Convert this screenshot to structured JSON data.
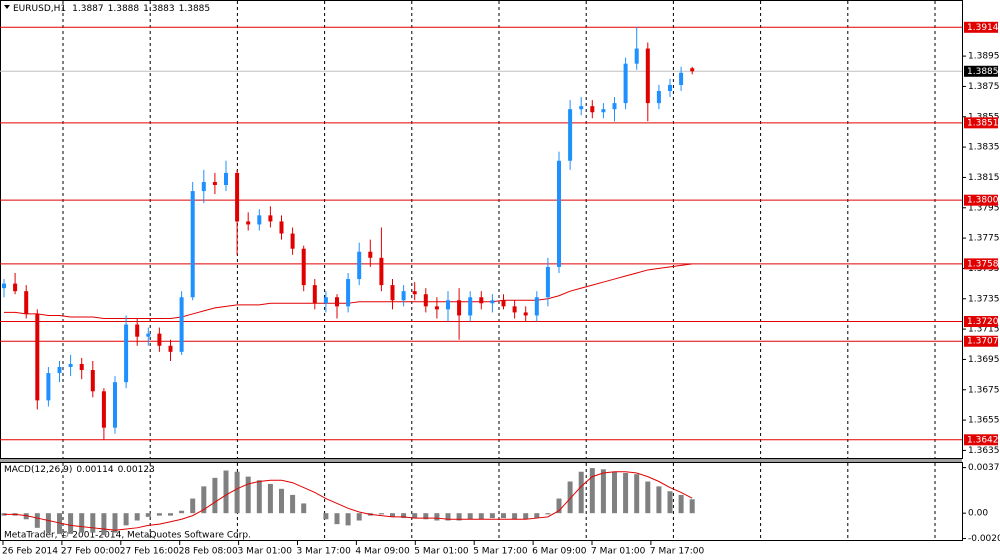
{
  "header": {
    "symbol": "EURUSD,H1",
    "ohlc": [
      1.3887,
      1.3888,
      1.3883,
      1.3885
    ]
  },
  "chart_data": {
    "type": "candlestick",
    "ylim": [
      1.363,
      1.3932
    ],
    "yticks": [
      1.3635,
      1.3655,
      1.3675,
      1.3695,
      1.3715,
      1.3735,
      1.3755,
      1.3775,
      1.3795,
      1.3815,
      1.3835,
      1.3855,
      1.3875,
      1.3895
    ],
    "bull_color": "#1e90ff",
    "bear_color": "#e00000",
    "candles": [
      [
        1.3742,
        1.3748,
        1.3736,
        1.3745
      ],
      [
        1.3745,
        1.3752,
        1.3738,
        1.374
      ],
      [
        1.374,
        1.3744,
        1.3722,
        1.3725
      ],
      [
        1.3725,
        1.3728,
        1.3662,
        1.3668
      ],
      [
        1.3668,
        1.369,
        1.3664,
        1.3686
      ],
      [
        1.3686,
        1.3694,
        1.368,
        1.369
      ],
      [
        1.369,
        1.3698,
        1.3684,
        1.3692
      ],
      [
        1.3692,
        1.3696,
        1.3682,
        1.3688
      ],
      [
        1.3688,
        1.3694,
        1.367,
        1.3674
      ],
      [
        1.3674,
        1.3676,
        1.3642,
        1.365
      ],
      [
        1.365,
        1.3684,
        1.3646,
        1.368
      ],
      [
        1.368,
        1.3724,
        1.3676,
        1.3718
      ],
      [
        1.3718,
        1.3722,
        1.3704,
        1.371
      ],
      [
        1.371,
        1.3716,
        1.3704,
        1.3712
      ],
      [
        1.3712,
        1.3716,
        1.37,
        1.3704
      ],
      [
        1.3704,
        1.3708,
        1.3694,
        1.37
      ],
      [
        1.37,
        1.374,
        1.3698,
        1.3736
      ],
      [
        1.3736,
        1.3812,
        1.3734,
        1.3806
      ],
      [
        1.3806,
        1.382,
        1.3798,
        1.3812
      ],
      [
        1.3812,
        1.3818,
        1.3804,
        1.381
      ],
      [
        1.381,
        1.3826,
        1.3806,
        1.3818
      ],
      [
        1.3818,
        1.382,
        1.3764,
        1.3786
      ],
      [
        1.3786,
        1.3792,
        1.378,
        1.3784
      ],
      [
        1.3784,
        1.3794,
        1.378,
        1.379
      ],
      [
        1.379,
        1.3796,
        1.3782,
        1.3786
      ],
      [
        1.3786,
        1.379,
        1.3774,
        1.3778
      ],
      [
        1.3778,
        1.3782,
        1.3764,
        1.3768
      ],
      [
        1.3768,
        1.377,
        1.374,
        1.3744
      ],
      [
        1.3744,
        1.3748,
        1.3728,
        1.3732
      ],
      [
        1.3732,
        1.374,
        1.3726,
        1.3736
      ],
      [
        1.3736,
        1.3738,
        1.3722,
        1.373
      ],
      [
        1.373,
        1.3752,
        1.3726,
        1.3748
      ],
      [
        1.3748,
        1.3772,
        1.3744,
        1.3766
      ],
      [
        1.3766,
        1.3774,
        1.3756,
        1.3762
      ],
      [
        1.3762,
        1.3782,
        1.374,
        1.3744
      ],
      [
        1.3744,
        1.3748,
        1.3728,
        1.3734
      ],
      [
        1.3734,
        1.3744,
        1.373,
        1.374
      ],
      [
        1.374,
        1.3746,
        1.3734,
        1.3738
      ],
      [
        1.3738,
        1.3742,
        1.3726,
        1.373
      ],
      [
        1.373,
        1.3736,
        1.3722,
        1.3728
      ],
      [
        1.3728,
        1.374,
        1.372,
        1.3734
      ],
      [
        1.3734,
        1.3742,
        1.3708,
        1.3724
      ],
      [
        1.3724,
        1.374,
        1.372,
        1.3736
      ],
      [
        1.3736,
        1.374,
        1.3728,
        1.3732
      ],
      [
        1.3732,
        1.3738,
        1.3726,
        1.3734
      ],
      [
        1.3734,
        1.3738,
        1.3728,
        1.373
      ],
      [
        1.373,
        1.3734,
        1.3722,
        1.3726
      ],
      [
        1.3726,
        1.373,
        1.372,
        1.3724
      ],
      [
        1.3724,
        1.374,
        1.372,
        1.3736
      ],
      [
        1.3736,
        1.3762,
        1.373,
        1.3756
      ],
      [
        1.3756,
        1.3832,
        1.3752,
        1.3826
      ],
      [
        1.3826,
        1.3866,
        1.382,
        1.386
      ],
      [
        1.386,
        1.3868,
        1.3856,
        1.3862
      ],
      [
        1.3862,
        1.3866,
        1.3854,
        1.3858
      ],
      [
        1.3858,
        1.3864,
        1.3854,
        1.386
      ],
      [
        1.386,
        1.3868,
        1.3852,
        1.3864
      ],
      [
        1.3864,
        1.3894,
        1.386,
        1.389
      ],
      [
        1.389,
        1.3914,
        1.3886,
        1.39
      ],
      [
        1.39,
        1.3904,
        1.3852,
        1.3864
      ],
      [
        1.3864,
        1.3876,
        1.386,
        1.3872
      ],
      [
        1.3872,
        1.388,
        1.3868,
        1.3876
      ],
      [
        1.3876,
        1.3888,
        1.3872,
        1.3884
      ],
      [
        1.3887,
        1.3888,
        1.3883,
        1.3885
      ]
    ],
    "ma": {
      "color": "#e00000",
      "values": [
        1.3726,
        1.3726,
        1.3725,
        1.3725,
        1.3724,
        1.3724,
        1.3723,
        1.3723,
        1.3723,
        1.3722,
        1.3722,
        1.3722,
        1.3722,
        1.3722,
        1.3722,
        1.3722,
        1.3723,
        1.3725,
        1.3727,
        1.3729,
        1.373,
        1.3731,
        1.3731,
        1.3731,
        1.3732,
        1.3732,
        1.3732,
        1.3732,
        1.3732,
        1.3732,
        1.3732,
        1.3732,
        1.3733,
        1.3733,
        1.3733,
        1.3733,
        1.3733,
        1.3733,
        1.3733,
        1.3733,
        1.3733,
        1.3733,
        1.3733,
        1.3733,
        1.3733,
        1.3734,
        1.3734,
        1.3734,
        1.3734,
        1.3735,
        1.3737,
        1.374,
        1.3742,
        1.3744,
        1.3746,
        1.3748,
        1.375,
        1.3752,
        1.3754,
        1.3755,
        1.3756,
        1.3757,
        1.3758
      ]
    },
    "levels": {
      "color": "#e00000",
      "values": [
        {
          "value": 1.3914,
          "label": "1.3914"
        },
        {
          "value": 1.3851,
          "label": "1.3851"
        },
        {
          "value": 1.38,
          "label": "1.3800"
        },
        {
          "value": 1.3758,
          "label": "1.3758"
        },
        {
          "value": 1.372,
          "label": "1.3720"
        },
        {
          "value": 1.3707,
          "label": "1.3707"
        },
        {
          "value": 1.3642,
          "label": "1.3642"
        }
      ]
    },
    "current_price": 1.3885,
    "time_labels": [
      "26 Feb 2014",
      "27 Feb 00:00",
      "27 Feb 16:00",
      "28 Feb 08:00",
      "3 Mar 01:00",
      "3 Mar 17:00",
      "4 Mar 09:00",
      "5 Mar 01:00",
      "5 Mar 17:00",
      "6 Mar 09:00",
      "7 Mar 01:00",
      "7 Mar 17:00"
    ],
    "macd": {
      "title": "MACD(12,26,9)",
      "readout": [
        0.00114,
        0.00123
      ],
      "ylim": [
        -0.0022,
        0.0042
      ],
      "yticks": [
        0.00374,
        {
          "value": 0,
          "label": "0.00"
        },
        -0.00208
      ],
      "hist_color": "#808080",
      "signal_color": "#e00000",
      "hist": [
        -0.0002,
        -0.0002,
        -0.0005,
        -0.0012,
        -0.0016,
        -0.0017,
        -0.0017,
        -0.0016,
        -0.0016,
        -0.0018,
        -0.0016,
        -0.001,
        -0.0006,
        -0.0003,
        -0.0002,
        -0.0002,
        0.0002,
        0.0012,
        0.0022,
        0.0029,
        0.0035,
        0.0034,
        0.003,
        0.0027,
        0.0024,
        0.002,
        0.0015,
        0.0008,
        0,
        -0.0005,
        -0.0009,
        -0.001,
        -0.0006,
        -0.0002,
        -0.0001,
        -0.0003,
        -0.0004,
        -0.0004,
        -0.0005,
        -0.0006,
        -0.0006,
        -0.0006,
        -0.0005,
        -0.0005,
        -0.0004,
        -0.0004,
        -0.0005,
        -0.0005,
        -0.0004,
        -0.0001,
        0.0012,
        0.0026,
        0.0034,
        0.0037,
        0.0036,
        0.0034,
        0.0033,
        0.0032,
        0.0026,
        0.0022,
        0.0018,
        0.0015,
        0.00114
      ],
      "signal": [
        -0.0001,
        -0.0001,
        -0.0002,
        -0.0004,
        -0.0006,
        -0.0008,
        -0.001,
        -0.0011,
        -0.0012,
        -0.0013,
        -0.0014,
        -0.0013,
        -0.0012,
        -0.001,
        -0.0009,
        -0.0007,
        -0.0005,
        -0.0002,
        0.0003,
        0.0009,
        0.0015,
        0.002,
        0.0024,
        0.0026,
        0.0027,
        0.0027,
        0.0025,
        0.0021,
        0.0017,
        0.0012,
        0.0008,
        0.0004,
        0.0001,
        -0.0001,
        -0.0002,
        -0.0003,
        -0.0003,
        -0.0004,
        -0.0004,
        -0.0004,
        -0.0005,
        -0.0005,
        -0.0005,
        -0.0005,
        -0.0005,
        -0.0005,
        -0.0005,
        -0.0005,
        -0.0004,
        -0.0003,
        0.0002,
        0.0012,
        0.0022,
        0.003,
        0.0033,
        0.0034,
        0.0034,
        0.0033,
        0.003,
        0.0026,
        0.0021,
        0.0017,
        0.00123
      ]
    }
  },
  "footer": {
    "copyright": "MetaTrader, © 2001-2014, MetaQuotes Software Corp."
  }
}
